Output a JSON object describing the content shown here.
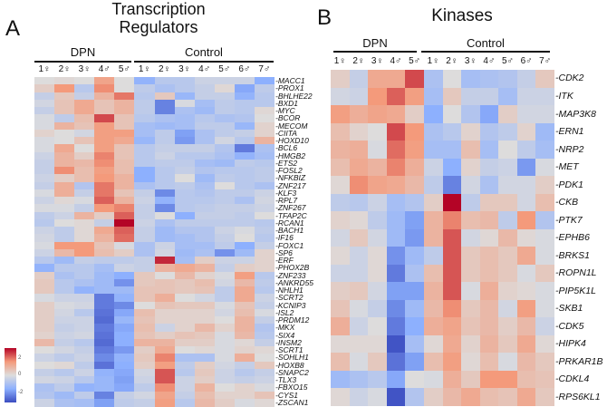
{
  "chart_data": [
    {
      "type": "heatmap",
      "panel": "A",
      "title": "Transcription Regulators",
      "groups": [
        {
          "name": "DPN",
          "columns": 5
        },
        {
          "name": "Control",
          "columns": 7
        }
      ],
      "columns": [
        "1♀",
        "2♀",
        "3♀",
        "4♂",
        "5♂",
        "1♀",
        "2♀",
        "3♀",
        "4♂",
        "5♂",
        "6♂",
        "7♂"
      ],
      "rows": [
        "MACC1",
        "PROX1",
        "BHLHE22",
        "BXD1",
        "MYC",
        "BCOR",
        "MECOM",
        "CIITA",
        "HOXD10",
        "BCL6",
        "HMGB2",
        "ETS2",
        "FOSL2",
        "NFKBIZ",
        "ZNF217",
        "KLF3",
        "RPL7",
        "ZNF267",
        "TFAP2C",
        "RCAN1",
        "BACH1",
        "IF16",
        "FOXC1",
        "SP6",
        "ERF",
        "PHOX2B",
        "ZNF233",
        "ANKRD55",
        "NHLH1",
        "SCRT2",
        "KCNIP3",
        "ISL2",
        "PRDM12",
        "MKX",
        "SIX4",
        "INSM2",
        "SCRT1",
        "SOHLH1",
        "HOXB8",
        "SNAPC2",
        "TLX3",
        "FBXO15",
        "CYS1",
        "ZSCAN1"
      ],
      "values": [
        [
          0,
          0.1,
          0,
          1.1,
          0,
          -1.2,
          -0.6,
          -0.6,
          -0.3,
          -0.3,
          -0.3,
          -1.3
        ],
        [
          0.3,
          1.3,
          -0.6,
          1.4,
          0,
          -0.5,
          -0.8,
          -0.6,
          -0.4,
          0.1,
          -1.4,
          -0.5
        ],
        [
          -0.4,
          0.4,
          -0.4,
          0.8,
          1.6,
          -0.6,
          0.4,
          -1.1,
          -0.4,
          -0.4,
          -1.2,
          -0.6
        ],
        [
          -0.2,
          0.5,
          1.0,
          0.5,
          0.8,
          -0.5,
          -1.9,
          -0.1,
          -0.9,
          -0.5,
          -0.6,
          -0.6
        ],
        [
          -0.4,
          0.5,
          1.0,
          0.5,
          0.8,
          -0.5,
          -1.9,
          -0.8,
          -1.0,
          -0.5,
          -0.6,
          0.1
        ],
        [
          -0.1,
          -0.5,
          0.6,
          2.0,
          0.5,
          -0.6,
          -0.8,
          -0.9,
          -0.6,
          -0.8,
          -0.7,
          0
        ],
        [
          -0.1,
          0.8,
          0.5,
          1.2,
          0.5,
          -0.9,
          -1.0,
          -0.9,
          -0.5,
          -0.5,
          -1.1,
          0.2
        ],
        [
          0.2,
          0,
          -0.2,
          1.2,
          1.2,
          -0.9,
          -0.5,
          -1.5,
          -0.8,
          -0.5,
          -0.4,
          0.2
        ],
        [
          -0.1,
          0,
          0.5,
          1.2,
          1.0,
          -1.1,
          -0.5,
          -1.6,
          -0.8,
          -0.2,
          -0.6,
          0.8
        ],
        [
          -0.1,
          1.0,
          0,
          1.2,
          0.5,
          -0.6,
          -0.4,
          -0.4,
          -0.4,
          -0.7,
          -2.0,
          -0.8
        ],
        [
          -0.3,
          0.8,
          0.3,
          1.5,
          0.5,
          -0.6,
          -0.3,
          -0.6,
          -0.6,
          -0.8,
          -1.2,
          -0.9
        ],
        [
          -0.4,
          0.8,
          0.7,
          1.4,
          0.6,
          -0.6,
          -0.5,
          -0.5,
          -0.9,
          -1.0,
          -0.5,
          -0.6
        ],
        [
          -0.4,
          1.4,
          0.6,
          1.2,
          0.6,
          -1.3,
          -0.6,
          -0.4,
          -0.7,
          -0.6,
          -0.6,
          -0.5
        ],
        [
          -0.3,
          0.3,
          0.6,
          1.3,
          0.8,
          -1.3,
          -0.6,
          0,
          -1.0,
          -0.5,
          -0.6,
          -0.5
        ],
        [
          -0.4,
          0.9,
          -0.7,
          1.6,
          0.8,
          -0.8,
          -0.6,
          -0.5,
          -0.8,
          0,
          -0.6,
          -0.8
        ],
        [
          -0.1,
          0.9,
          -0.4,
          1.6,
          0.5,
          -0.4,
          -1.8,
          -0.6,
          -0.7,
          -0.5,
          -0.5,
          -0.3
        ],
        [
          -0.3,
          0.1,
          -0.1,
          1.8,
          0.8,
          -0.3,
          -1.2,
          -0.6,
          -0.6,
          -0.5,
          -0.8,
          -0.2
        ],
        [
          -0.1,
          -0.1,
          -0.4,
          1.3,
          1.5,
          -0.4,
          -1.8,
          -0.6,
          -0.5,
          -0.4,
          -0.4,
          -0.3
        ],
        [
          -0.5,
          -0.3,
          0.8,
          0.3,
          1.8,
          -0.4,
          0,
          -1.3,
          -0.4,
          -0.4,
          -0.5,
          0
        ],
        [
          -0.6,
          0,
          0.1,
          -0.4,
          2.6,
          -0.3,
          -0.8,
          -0.5,
          -0.5,
          -0.5,
          -0.5,
          -0.6
        ],
        [
          -0.3,
          -0.5,
          0.1,
          1.0,
          1.8,
          -0.4,
          -1.0,
          -0.7,
          -0.7,
          -0.3,
          -0.1,
          -0.5
        ],
        [
          -0.2,
          -0.5,
          0.1,
          0.8,
          1.7,
          -0.4,
          -1.0,
          -0.9,
          -0.7,
          -0.4,
          0,
          -0.6
        ],
        [
          -0.1,
          1.3,
          1.3,
          0.5,
          -0.1,
          -0.8,
          -0.3,
          -0.9,
          -0.9,
          -0.5,
          -1.3,
          -0.4
        ],
        [
          -0.3,
          0.7,
          1.3,
          0.6,
          0.3,
          -0.8,
          -0.2,
          -1.0,
          -0.8,
          -1.7,
          -1.0,
          0.2
        ],
        [
          -0.6,
          -1.0,
          -0.4,
          -0.5,
          -0.5,
          -0.4,
          2.3,
          -0.9,
          0.3,
          -0.3,
          -0.3,
          0.2
        ],
        [
          -1.2,
          -0.6,
          -0.6,
          -0.9,
          -0.3,
          -0.4,
          0.8,
          1.0,
          0.8,
          -0.4,
          0.3,
          0.2
        ],
        [
          0.3,
          -0.8,
          -0.6,
          -1.0,
          -1.3,
          0.4,
          0,
          0.7,
          0.2,
          -0.1,
          1.2,
          -0.6
        ],
        [
          0.4,
          -0.6,
          -0.8,
          -1.0,
          -1.7,
          0.4,
          0.5,
          0.4,
          0.6,
          -0.2,
          0.7,
          -0.5
        ],
        [
          0.4,
          -0.6,
          -1.2,
          -1.0,
          -1.0,
          0.5,
          0.5,
          0.4,
          0.5,
          -0.5,
          1.0,
          -0.6
        ],
        [
          -0.1,
          -0.3,
          -0.3,
          -2.0,
          -1.2,
          0.5,
          0.9,
          0,
          -0.2,
          -0.5,
          1.0,
          -0.3
        ],
        [
          0.3,
          -0.1,
          -0.2,
          -2.0,
          -1.8,
          0,
          0.5,
          0.4,
          0.4,
          -0.1,
          0.5,
          -0.4
        ],
        [
          0.3,
          -0.2,
          -0.6,
          -2.1,
          -1.4,
          0.6,
          0.2,
          0.2,
          0.2,
          -0.2,
          0.6,
          -0.1
        ],
        [
          0.3,
          -0.3,
          -0.3,
          -2.2,
          -1.1,
          0.5,
          0.2,
          0.2,
          0.2,
          0,
          0.8,
          -0.4
        ],
        [
          0.3,
          -0.4,
          -0.3,
          -2.0,
          -1.4,
          0.6,
          -0.3,
          0.2,
          0.7,
          0.2,
          0.8,
          -0.7
        ],
        [
          0.2,
          -0.3,
          -0.2,
          -2.1,
          -1.3,
          0.5,
          0.3,
          0.5,
          0.4,
          -0.1,
          0.7,
          -0.6
        ],
        [
          0.7,
          -0.4,
          -0.6,
          -2.2,
          -1.3,
          0.8,
          0.8,
          0.3,
          0.3,
          -0.1,
          0.1,
          -0.4
        ],
        [
          0,
          -0.2,
          -0.4,
          -2.0,
          -1.6,
          0.3,
          1.0,
          0,
          0.1,
          -0.1,
          0.2,
          0.1
        ],
        [
          -0.3,
          -0.5,
          -0.3,
          -1.8,
          -1.2,
          0.4,
          1.5,
          -0.8,
          -0.8,
          -0.1,
          0.9,
          0
        ],
        [
          0,
          0.1,
          -0.5,
          -2.1,
          -1.3,
          0.3,
          1.2,
          -0.5,
          0.3,
          -0.2,
          -0.4,
          0.4
        ],
        [
          -0.4,
          -0.6,
          -0.3,
          -1.2,
          -1.4,
          -0.2,
          1.9,
          -0.6,
          0.4,
          -0.3,
          -0.6,
          -0.4
        ],
        [
          -0.2,
          -0.3,
          -0.6,
          -1.1,
          -1.5,
          -0.3,
          1.9,
          -0.3,
          0.3,
          -0.3,
          -0.4,
          -0.3
        ],
        [
          -0.8,
          -0.5,
          -1.2,
          -1.1,
          -1.4,
          -0.5,
          1.4,
          -0.3,
          0.8,
          0,
          0.2,
          -0.1
        ],
        [
          -0.7,
          -1.0,
          -0.5,
          -1.9,
          -0.4,
          -0.2,
          1.1,
          -0.4,
          0.6,
          0.2,
          0.2,
          0.5
        ],
        [
          -0.3,
          -0.8,
          -0.9,
          -1.5,
          -0.5,
          -0.4,
          1.2,
          -0.6,
          0.7,
          0.3,
          -0.1,
          0.1
        ]
      ],
      "colorbar": {
        "ticks": [
          "2",
          "0",
          "-2"
        ],
        "range": [
          -2.6,
          2.6
        ]
      }
    },
    {
      "type": "heatmap",
      "panel": "B",
      "title": "Kinases",
      "groups": [
        {
          "name": "DPN",
          "columns": 5
        },
        {
          "name": "Control",
          "columns": 7
        }
      ],
      "columns": [
        "1♀",
        "2♀",
        "3♀",
        "4♂",
        "5♂",
        "1♀",
        "2♀",
        "3♀",
        "4♂",
        "5♂",
        "6♂",
        "7♂"
      ],
      "rows": [
        "CDK2",
        "ITK",
        "MAP3K8",
        "ERN1",
        "NRP2",
        "MET",
        "PDK1",
        "CKB",
        "PTK7",
        "EPHB6",
        "BRKS1",
        "ROPN1L",
        "PIP5K1L",
        "SKB1",
        "CDK5",
        "HIPK4",
        "PRKAR1B",
        "CDKL4",
        "RPS6KL1"
      ],
      "values": [
        [
          0.3,
          -0.4,
          1.0,
          1.0,
          2.0,
          -0.8,
          0,
          -0.9,
          -0.8,
          -0.7,
          -0.4,
          0.4
        ],
        [
          -0.2,
          -0.3,
          1.3,
          1.8,
          1.2,
          -0.9,
          0.4,
          -0.4,
          -0.4,
          -0.9,
          -0.3,
          -0.3
        ],
        [
          1.2,
          0.9,
          1.1,
          1.0,
          0.3,
          -1.3,
          0,
          -0.7,
          -1.4,
          0.3,
          -0.2,
          -0.2
        ],
        [
          0.6,
          0.2,
          0,
          2.0,
          1.3,
          -0.8,
          -0.6,
          0.2,
          -0.7,
          -0.5,
          0.2,
          -1.0
        ],
        [
          0.8,
          0.9,
          -0.1,
          1.7,
          1.2,
          -0.9,
          -0.9,
          0.6,
          -0.9,
          0,
          -0.5,
          -0.9
        ],
        [
          0.6,
          1.0,
          0.8,
          1.5,
          0.9,
          -0.3,
          -1.3,
          0.2,
          -0.4,
          -0.3,
          -1.6,
          -0.1
        ],
        [
          0.1,
          1.4,
          1.1,
          1.0,
          0.7,
          -0.5,
          -1.9,
          -0.2,
          -0.8,
          -0.2,
          -0.2,
          0.3
        ],
        [
          -0.5,
          -0.6,
          -0.3,
          -0.9,
          -0.7,
          0.3,
          2.6,
          -0.5,
          0.4,
          0.4,
          -0.2,
          0.6
        ],
        [
          0.2,
          0.1,
          -0.5,
          -1.0,
          -1.5,
          0.8,
          1.5,
          0.6,
          0.7,
          -0.5,
          1.3,
          -0.7
        ],
        [
          -0.2,
          0.4,
          -0.2,
          -1.0,
          -1.6,
          0.8,
          1.9,
          -0.2,
          0.1,
          0.7,
          0.1,
          -0.1
        ],
        [
          0.1,
          -0.3,
          0.1,
          -1.7,
          -1.0,
          -0.5,
          1.9,
          0.4,
          0.6,
          0.4,
          1.0,
          -0.1
        ],
        [
          -0.3,
          -0.3,
          0.1,
          -2.0,
          -0.8,
          0.6,
          1.9,
          0.4,
          0.6,
          0.4,
          -0.1,
          0.4
        ],
        [
          0.3,
          0.4,
          -0.2,
          -1.5,
          -1.5,
          0.8,
          1.9,
          -0.1,
          0.9,
          0.2,
          0.1,
          -0.1
        ],
        [
          0.5,
          -0.1,
          -0.4,
          -1.8,
          -1.0,
          0.7,
          1.4,
          0.4,
          0.7,
          -0.2,
          1.2,
          -0.1
        ],
        [
          0.9,
          -0.3,
          0,
          -2.0,
          -1.3,
          0.9,
          1.1,
          0.5,
          0.7,
          0.3,
          0.7,
          -0.3
        ],
        [
          0.1,
          0.1,
          0.1,
          -2.5,
          -0.9,
          0.1,
          1.0,
          0.2,
          0.8,
          0.4,
          1.0,
          0.1
        ],
        [
          0.6,
          -0.1,
          0.4,
          -2.1,
          -1.5,
          0.6,
          1.2,
          0.1,
          0.6,
          -0.1,
          0.7,
          0.4
        ],
        [
          -1.0,
          -0.8,
          -0.6,
          -1.4,
          0,
          -0.1,
          0.9,
          0.4,
          1.3,
          1.3,
          0.6,
          0.5
        ],
        [
          0.1,
          -0.3,
          -0.1,
          -2.5,
          -0.7,
          0.3,
          0.7,
          1.0,
          0.6,
          0.5,
          1.0,
          0.4
        ]
      ]
    }
  ],
  "labels": {
    "panel_a": "A",
    "title_a_line1": "Transcription",
    "title_a_line2": "Regulators",
    "panel_b": "B",
    "title_b": "Kinases",
    "group_dpn": "DPN",
    "group_control": "Control"
  },
  "colors": {
    "low": "#3b4cc0",
    "lowmid": "#8db0fe",
    "mid": "#dddcdc",
    "highmid": "#f49a7b",
    "high": "#b40426"
  }
}
